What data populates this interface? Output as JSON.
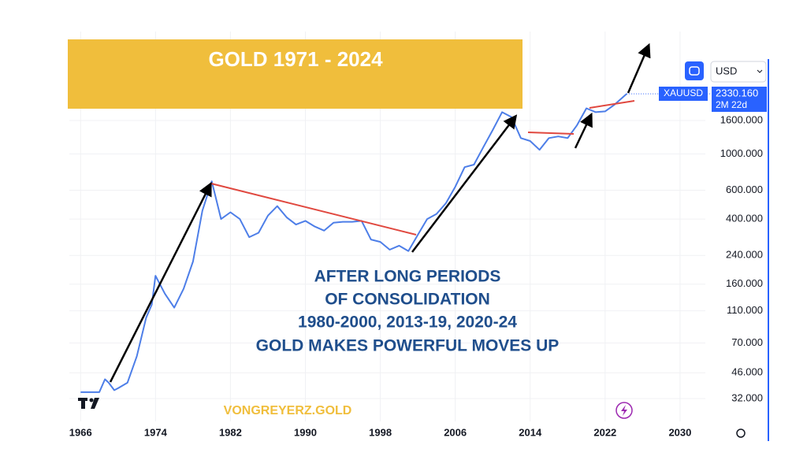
{
  "chart_data": {
    "type": "line",
    "title": "GOLD 1971 - 2024",
    "annotations": [
      "AFTER LONG PERIODS",
      "OF CONSOLIDATION",
      "1980-2000, 2013-19, 2020-24",
      "GOLD MAKES POWERFUL MOVES UP"
    ],
    "watermark": "VONGREYERZ.GOLD",
    "currency": "USD",
    "price_tag": {
      "symbol": "XAUUSD",
      "price": "2330.160",
      "countdown": "2M 22d"
    },
    "log_scale": true,
    "grid": true,
    "color": "#4d7ee8",
    "x": [
      1966,
      1968,
      1968.6,
      1969,
      1969.6,
      1970,
      1971,
      1972,
      1973,
      1973.6,
      1974,
      1975,
      1976,
      1977,
      1978,
      1979,
      1980,
      1981,
      1982,
      1983,
      1984,
      1985,
      1986,
      1987,
      1988,
      1989,
      1990,
      1991,
      1992,
      1993,
      1994,
      1995,
      1996,
      1997,
      1998,
      1999,
      2000,
      2001,
      2002,
      2003,
      2004,
      2005,
      2006,
      2007,
      2008,
      2009,
      2010,
      2011,
      2012,
      2013,
      2014,
      2015,
      2016,
      2017,
      2018,
      2019,
      2020,
      2021,
      2022,
      2023,
      2024.3
    ],
    "values": [
      35,
      35,
      42,
      40,
      36,
      37,
      40,
      58,
      100,
      120,
      180,
      140,
      115,
      150,
      220,
      450,
      680,
      400,
      440,
      400,
      310,
      330,
      420,
      480,
      410,
      370,
      390,
      360,
      340,
      380,
      385,
      385,
      390,
      300,
      290,
      260,
      275,
      255,
      320,
      400,
      430,
      500,
      630,
      830,
      860,
      1100,
      1400,
      1800,
      1680,
      1250,
      1200,
      1060,
      1250,
      1280,
      1250,
      1500,
      1900,
      1800,
      1820,
      2000,
      2330.16
    ],
    "xlim": [
      1964.8,
      2032.7
    ],
    "xticks": [
      1966,
      1974,
      1982,
      1990,
      1998,
      2006,
      2014,
      2022,
      2030
    ],
    "ylim": [
      23.2,
      5600
    ],
    "yticks": [
      {
        "value": 32,
        "label": "32.000"
      },
      {
        "value": 46,
        "label": "46.000"
      },
      {
        "value": 70,
        "label": "70.000"
      },
      {
        "value": 110,
        "label": "110.000"
      },
      {
        "value": 160,
        "label": "160.000"
      },
      {
        "value": 240,
        "label": "240.000"
      },
      {
        "value": 400,
        "label": "400.000"
      },
      {
        "value": 600,
        "label": "600.000"
      },
      {
        "value": 1000,
        "label": "1000.000"
      },
      {
        "value": 1600,
        "label": "1600.000"
      }
    ]
  }
}
